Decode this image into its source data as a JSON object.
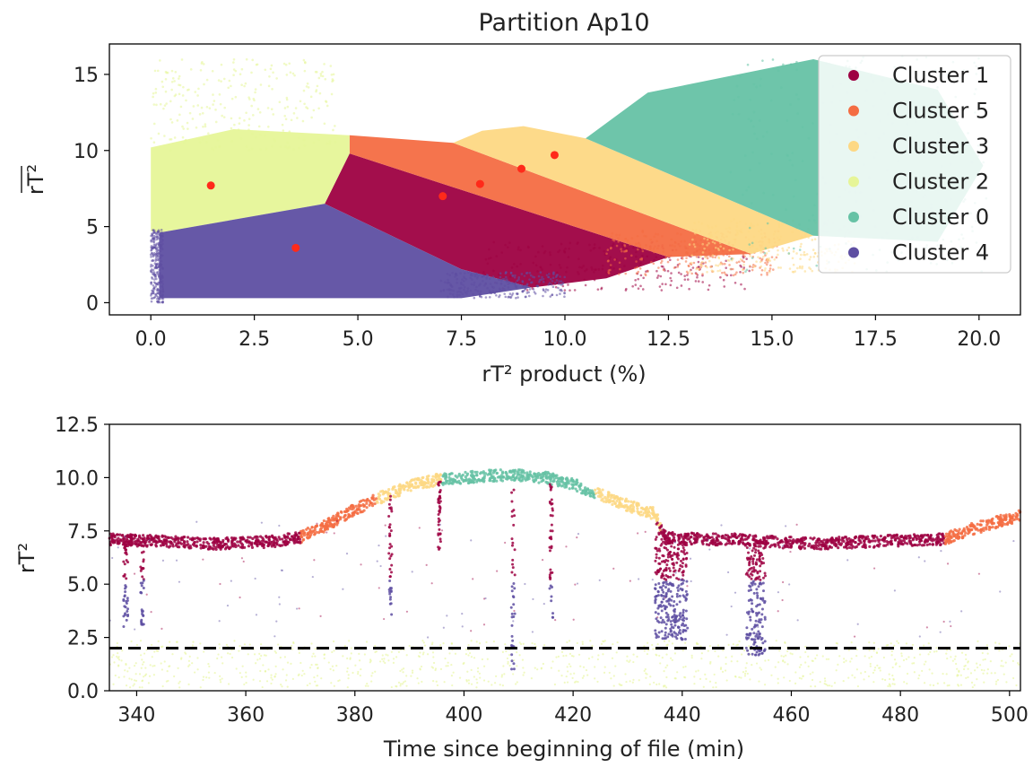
{
  "chart_data": [
    {
      "type": "scatter",
      "title": "Partition Ap10",
      "xlabel": "rT² product (%)",
      "ylabel": "rT²",
      "ylabel_overline": true,
      "xlim": [
        -1.0,
        21.0
      ],
      "ylim": [
        -0.8,
        17.0
      ],
      "xticks": [
        0.0,
        2.5,
        5.0,
        7.5,
        10.0,
        12.5,
        15.0,
        17.5,
        20.0
      ],
      "xtick_labels": [
        "0.0",
        "2.5",
        "5.0",
        "7.5",
        "10.0",
        "12.5",
        "15.0",
        "17.5",
        "20.0"
      ],
      "yticks": [
        0,
        5,
        10,
        15
      ],
      "ytick_labels": [
        "0",
        "5",
        "10",
        "15"
      ],
      "grid": false,
      "legend_position": "top-right",
      "series": [
        {
          "name": "Cluster 1",
          "color": "#9e0142",
          "region": [
            [
              4.2,
              6.5
            ],
            [
              4.8,
              9.8
            ],
            [
              12.5,
              3.0
            ],
            [
              11.0,
              1.6
            ],
            [
              9.2,
              1.0
            ],
            [
              7.5,
              2.2
            ]
          ],
          "fringe": [
            [
              8.0,
              0.8,
              14.5,
              4.0
            ]
          ]
        },
        {
          "name": "Cluster 5",
          "color": "#f46d43",
          "region": [
            [
              4.8,
              9.8
            ],
            [
              4.8,
              11.0
            ],
            [
              7.3,
              10.5
            ],
            [
              14.5,
              3.2
            ],
            [
              12.5,
              3.0
            ]
          ],
          "fringe": [
            [
              11.0,
              1.8,
              15.2,
              4.8
            ]
          ]
        },
        {
          "name": "Cluster 3",
          "color": "#fdd884",
          "region": [
            [
              7.3,
              10.5
            ],
            [
              8.0,
              11.3
            ],
            [
              9.0,
              11.6
            ],
            [
              10.5,
              10.8
            ],
            [
              16.0,
              4.4
            ],
            [
              14.5,
              3.2
            ]
          ],
          "fringe": [
            [
              13.0,
              2.0,
              17.0,
              5.5
            ]
          ]
        },
        {
          "name": "Cluster 2",
          "color": "#e6f598",
          "region": [
            [
              0.0,
              4.7
            ],
            [
              0.0,
              10.2
            ],
            [
              2.0,
              11.4
            ],
            [
              4.8,
              11.0
            ],
            [
              4.8,
              9.8
            ],
            [
              4.2,
              6.5
            ],
            [
              0.2,
              4.6
            ]
          ],
          "fringe": [
            [
              0.0,
              10.0,
              4.5,
              16.0
            ]
          ]
        },
        {
          "name": "Cluster 0",
          "color": "#66c2a5",
          "region": [
            [
              10.5,
              10.8
            ],
            [
              12.0,
              13.8
            ],
            [
              16.0,
              16.0
            ],
            [
              19.0,
              14.0
            ],
            [
              20.1,
              9.0
            ],
            [
              19.0,
              4.0
            ],
            [
              16.0,
              4.4
            ]
          ],
          "fringe": [
            [
              14.0,
              2.0,
              20.2,
              16.2
            ]
          ]
        },
        {
          "name": "Cluster 4",
          "color": "#5e4fa2",
          "region": [
            [
              0.2,
              4.6
            ],
            [
              0.2,
              0.3
            ],
            [
              7.5,
              0.3
            ],
            [
              9.2,
              1.0
            ],
            [
              7.5,
              2.2
            ],
            [
              4.2,
              6.5
            ]
          ],
          "fringe": [
            [
              0.0,
              0.0,
              0.3,
              4.8
            ],
            [
              7.0,
              0.3,
              10.0,
              2.0
            ]
          ]
        }
      ],
      "centroids": {
        "color": "#ff2a1a",
        "points": [
          [
            1.45,
            7.7
          ],
          [
            3.5,
            3.6
          ],
          [
            7.05,
            7.0
          ],
          [
            7.95,
            7.8
          ],
          [
            8.95,
            8.8
          ],
          [
            9.75,
            9.7
          ]
        ]
      }
    },
    {
      "type": "scatter",
      "title": "",
      "xlabel": "Time since beginning of file (min)",
      "ylabel": "rT²",
      "xlim": [
        335,
        502
      ],
      "ylim": [
        0.0,
        12.5
      ],
      "xticks": [
        340,
        360,
        380,
        400,
        420,
        440,
        460,
        480,
        500
      ],
      "xtick_labels": [
        "340",
        "360",
        "380",
        "400",
        "420",
        "440",
        "460",
        "480",
        "500"
      ],
      "yticks": [
        0.0,
        2.5,
        5.0,
        7.5,
        10.0,
        12.5
      ],
      "ytick_labels": [
        "0.0",
        "2.5",
        "5.0",
        "7.5",
        "10.0",
        "12.5"
      ],
      "grid": false,
      "threshold_line": {
        "y": 2.0,
        "style": "dashed",
        "color": "#000000"
      },
      "trace": [
        [
          335,
          7.1
        ],
        [
          345,
          7.0
        ],
        [
          355,
          6.9
        ],
        [
          365,
          7.0
        ],
        [
          370,
          7.2
        ],
        [
          375,
          7.8
        ],
        [
          380,
          8.5
        ],
        [
          385,
          9.1
        ],
        [
          390,
          9.6
        ],
        [
          395,
          9.9
        ],
        [
          400,
          10.0
        ],
        [
          405,
          10.1
        ],
        [
          410,
          10.1
        ],
        [
          415,
          10.0
        ],
        [
          420,
          9.7
        ],
        [
          425,
          9.2
        ],
        [
          430,
          8.7
        ],
        [
          435,
          8.3
        ],
        [
          437,
          7.2
        ],
        [
          445,
          7.1
        ],
        [
          450,
          7.1
        ],
        [
          455,
          7.0
        ],
        [
          465,
          6.9
        ],
        [
          475,
          7.0
        ],
        [
          485,
          7.1
        ],
        [
          488,
          7.1
        ],
        [
          492,
          7.5
        ],
        [
          496,
          7.8
        ],
        [
          502,
          8.2
        ]
      ],
      "trace_colors": [
        {
          "from": 335,
          "to": 370,
          "color": "#9e0142"
        },
        {
          "from": 370,
          "to": 384,
          "color": "#f46d43"
        },
        {
          "from": 384,
          "to": 396,
          "color": "#fdd884"
        },
        {
          "from": 396,
          "to": 424,
          "color": "#66c2a5"
        },
        {
          "from": 424,
          "to": 436,
          "color": "#fdd884"
        },
        {
          "from": 436,
          "to": 488,
          "color": "#9e0142"
        },
        {
          "from": 488,
          "to": 502,
          "color": "#f46d43"
        }
      ],
      "dips": [
        {
          "x": 338,
          "min": 2.7,
          "width": 0.8
        },
        {
          "x": 341,
          "min": 3.1,
          "width": 0.6
        },
        {
          "x": 386.5,
          "min": 3.4,
          "width": 0.6
        },
        {
          "x": 395.5,
          "min": 6.5,
          "width": 0.5
        },
        {
          "x": 409,
          "min": 0.8,
          "width": 0.7
        },
        {
          "x": 416,
          "min": 3.4,
          "width": 0.6
        },
        {
          "x": 438,
          "min": 2.4,
          "width": 6.0
        },
        {
          "x": 453.5,
          "min": 1.6,
          "width": 3.5
        }
      ],
      "cluster_colors": {
        "1": "#9e0142",
        "5": "#f46d43",
        "3": "#fdd884",
        "2": "#e6f598",
        "0": "#66c2a5",
        "4": "#5e4fa2"
      }
    }
  ]
}
